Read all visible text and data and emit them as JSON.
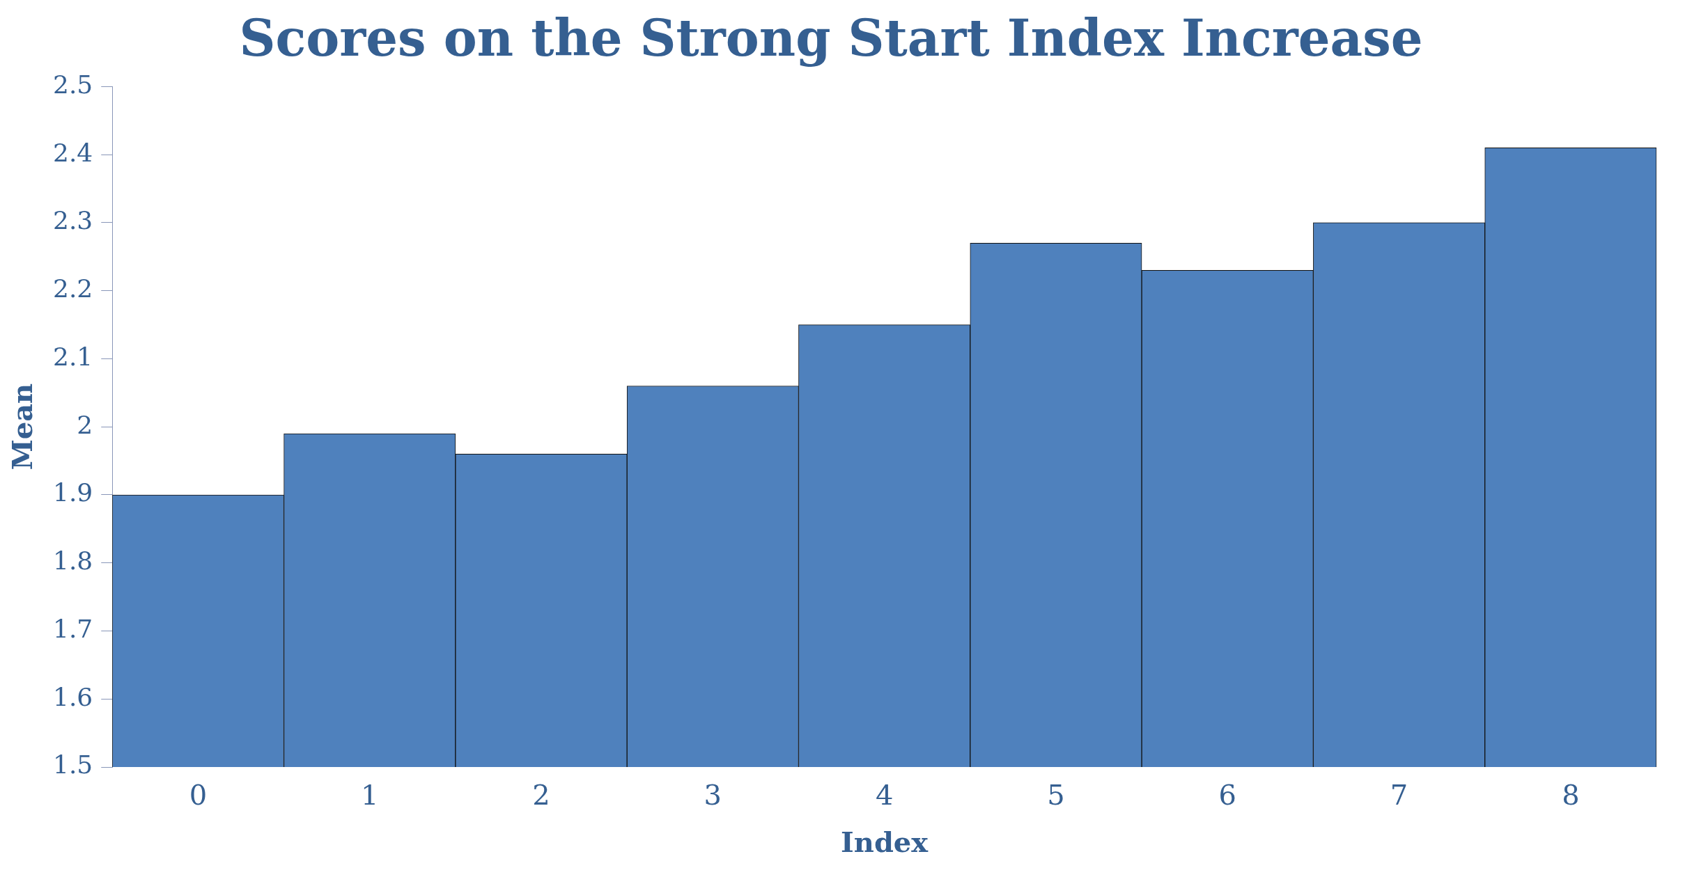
{
  "chart_data": {
    "type": "bar",
    "title": "Scores on the Strong Start Index Increase",
    "xlabel": "Index",
    "ylabel": "Mean",
    "categories": [
      "0",
      "1",
      "2",
      "3",
      "4",
      "5",
      "6",
      "7",
      "8"
    ],
    "values": [
      1.9,
      1.99,
      1.96,
      2.06,
      2.15,
      2.27,
      2.23,
      2.3,
      2.41
    ],
    "color": "#4f81bd",
    "ylim": [
      1.5,
      2.5
    ],
    "yticks": [
      1.5,
      1.6,
      1.7,
      1.8,
      1.9,
      2,
      2.1,
      2.2,
      2.3,
      2.4,
      2.5
    ],
    "grid": false,
    "legend": false
  }
}
